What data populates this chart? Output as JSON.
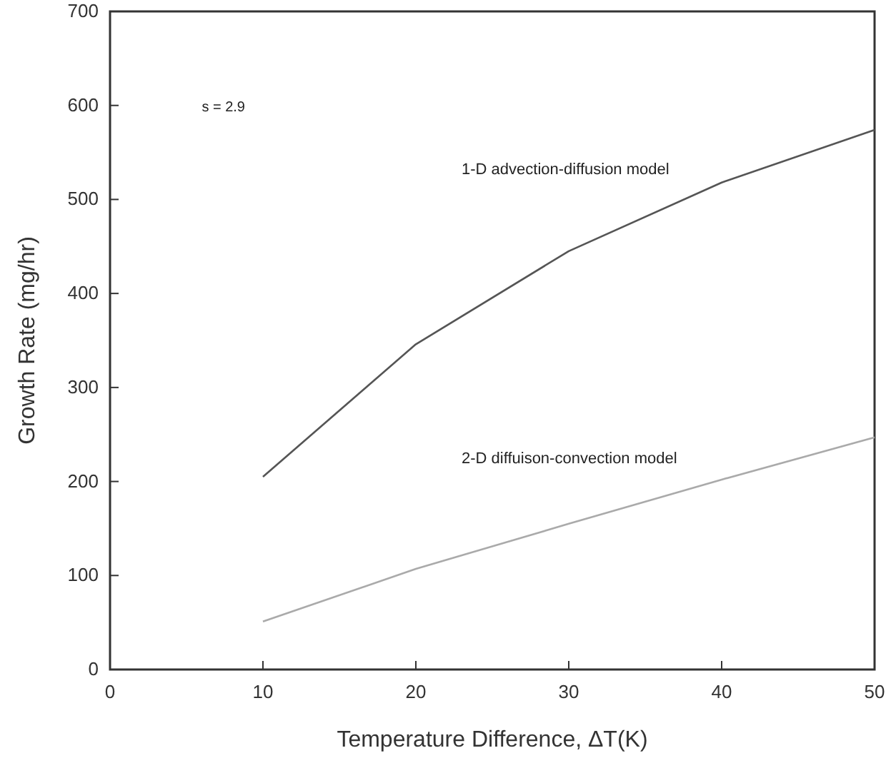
{
  "chart_data": {
    "type": "line",
    "xlabel": "Temperature Difference, ΔT(K)",
    "ylabel": "Growth Rate (mg/hr)",
    "annotations": [
      "s = 2.9"
    ],
    "x": [
      10,
      20,
      30,
      40,
      50
    ],
    "series": [
      {
        "name": "1-D advection-diffusion model",
        "color": "#555555",
        "values": [
          205,
          346,
          445,
          518,
          574
        ]
      },
      {
        "name": "2-D diffuison-convection model",
        "color": "#aaaaaa",
        "values": [
          51,
          107,
          155,
          202,
          247
        ]
      }
    ],
    "xlim": [
      0,
      50
    ],
    "xticks": [
      0,
      10,
      20,
      30,
      40,
      50
    ],
    "ylim": [
      0,
      700
    ],
    "yticks": [
      0,
      100,
      200,
      300,
      400,
      500,
      600,
      700
    ],
    "grid": false,
    "marker": "none",
    "line_style": "solid"
  }
}
